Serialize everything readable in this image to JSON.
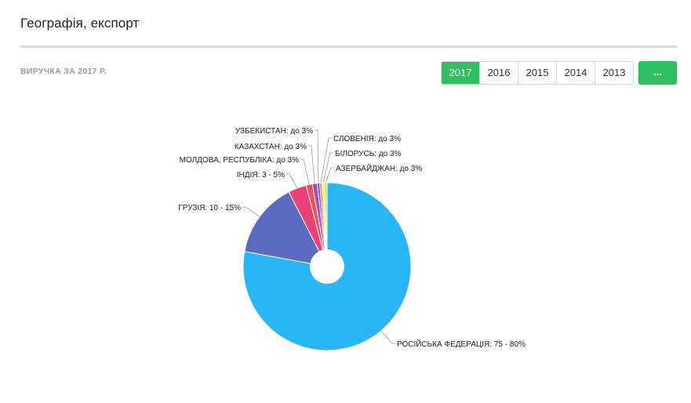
{
  "header": {
    "title": "Географія, експорт"
  },
  "toolbar": {
    "revenue_label": "ВИРУЧКА ЗА 2017 Р.",
    "years": [
      "2017",
      "2016",
      "2015",
      "2014",
      "2013"
    ],
    "active_year": "2017",
    "more_label": "...",
    "accent_color": "#2ebf62"
  },
  "chart_data": {
    "type": "pie",
    "title": "",
    "donut": true,
    "slices": [
      {
        "label": "РОСІЙСЬКА ФЕДЕРАЦІЯ: 75 - 80%",
        "value": 77.5,
        "color": "#29b6f6"
      },
      {
        "label": "ГРУЗІЯ: 10 - 15%",
        "value": 14.5,
        "color": "#5c6bc0"
      },
      {
        "label": "ІНДІЯ: 3 - 5%",
        "value": 3.5,
        "color": "#ec407a"
      },
      {
        "label": "МОЛДОВА, РЕСПУБЛІКА: до 3%",
        "value": 1.2,
        "color": "#ef5350"
      },
      {
        "label": "КАЗАХСТАН: до 3%",
        "value": 0.9,
        "color": "#ab47bc"
      },
      {
        "label": "УЗБЕКИСТАН: до 3%",
        "value": 0.5,
        "color": "#7e57c2"
      },
      {
        "label": "СЛОВЕНІЯ: до 3%",
        "value": 0.4,
        "color": "#ff7043"
      },
      {
        "label": "БІЛОРУСЬ: до 3%",
        "value": 0.5,
        "color": "#ffee58"
      },
      {
        "label": "АЗЕРБАЙДЖАН: до 3%",
        "value": 0.5,
        "color": "#d4e157"
      }
    ]
  }
}
